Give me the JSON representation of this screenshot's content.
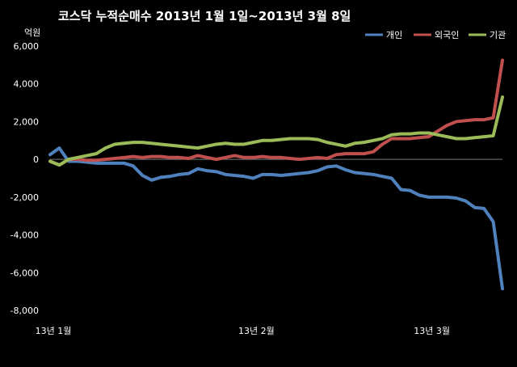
{
  "chart_data": {
    "type": "line",
    "title": "코스닥  누적순매수 2013년 1월 1일~2013년 3월 8일",
    "ylabel": "억원",
    "xlabel": "",
    "ylim": [
      -8000,
      6000
    ],
    "yticks": [
      6000,
      4000,
      2000,
      0,
      -2000,
      -4000,
      -6000,
      -8000
    ],
    "ytick_labels": [
      "6,000",
      "4,000",
      "2,000",
      "0",
      "-2,000",
      "-4,000",
      "-6,000",
      "-8,000"
    ],
    "xtick_labels": [
      {
        "label": "13년 1월",
        "index": 1
      },
      {
        "label": "13년 2월",
        "index": 23
      },
      {
        "label": "13년 3월",
        "index": 42
      }
    ],
    "grid": false,
    "legend_position": "top-right",
    "colors": {
      "background": "#000000",
      "text": "#ffffff",
      "zero_line": "#7a7a7a"
    },
    "x": [
      1,
      2,
      3,
      4,
      5,
      6,
      7,
      8,
      9,
      10,
      11,
      12,
      13,
      14,
      15,
      16,
      17,
      18,
      19,
      20,
      21,
      22,
      23,
      24,
      25,
      26,
      27,
      28,
      29,
      30,
      31,
      32,
      33,
      34,
      35,
      36,
      37,
      38,
      39,
      40,
      41,
      42,
      43,
      44,
      45,
      46,
      47,
      48,
      49,
      50
    ],
    "series": [
      {
        "name": "개인",
        "color": "#4f81bd",
        "values": [
          250,
          600,
          -100,
          -100,
          -150,
          -200,
          -200,
          -200,
          -200,
          -350,
          -850,
          -1100,
          -950,
          -900,
          -800,
          -750,
          -500,
          -600,
          -650,
          -800,
          -850,
          -900,
          -1000,
          -800,
          -800,
          -850,
          -800,
          -750,
          -700,
          -600,
          -400,
          -350,
          -550,
          -700,
          -750,
          -800,
          -900,
          -1000,
          -1600,
          -1650,
          -1900,
          -2000,
          -2000,
          -2000,
          -2050,
          -2200,
          -2550,
          -2600,
          -3300,
          -6850
        ]
      },
      {
        "name": "외국인",
        "color": "#c0504d",
        "values": [
          -100,
          -300,
          0,
          0,
          -50,
          -50,
          0,
          50,
          100,
          150,
          100,
          150,
          150,
          100,
          100,
          50,
          200,
          100,
          0,
          100,
          200,
          100,
          100,
          150,
          100,
          100,
          50,
          0,
          50,
          100,
          50,
          250,
          300,
          300,
          300,
          400,
          800,
          1100,
          1100,
          1100,
          1150,
          1200,
          1500,
          1800,
          2000,
          2050,
          2100,
          2100,
          2200,
          5250
        ]
      },
      {
        "name": "기관",
        "color": "#9bbb59",
        "values": [
          -100,
          -300,
          0,
          100,
          200,
          300,
          600,
          800,
          850,
          900,
          900,
          850,
          800,
          750,
          700,
          650,
          600,
          700,
          800,
          850,
          800,
          800,
          900,
          1000,
          1000,
          1050,
          1100,
          1100,
          1100,
          1050,
          900,
          800,
          700,
          850,
          900,
          1000,
          1100,
          1300,
          1350,
          1350,
          1400,
          1400,
          1300,
          1200,
          1100,
          1100,
          1150,
          1200,
          1250,
          3300
        ]
      }
    ]
  }
}
